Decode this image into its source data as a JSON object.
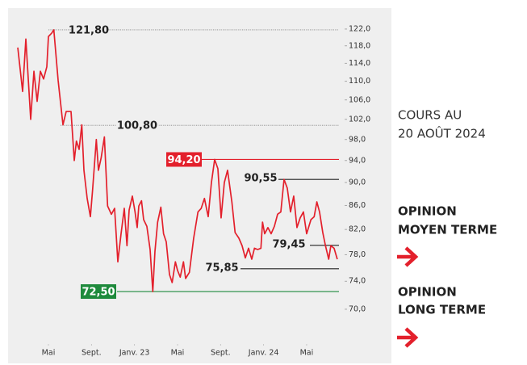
{
  "chart_data": {
    "type": "line",
    "yscale": "log",
    "xlim": [
      0,
      33
    ],
    "ylim": [
      66,
      126
    ],
    "yticks": [
      {
        "value": 122,
        "label": "122,0"
      },
      {
        "value": 118,
        "label": "118,0"
      },
      {
        "value": 114,
        "label": "114,0"
      },
      {
        "value": 110,
        "label": "110,0"
      },
      {
        "value": 106,
        "label": "106,0"
      },
      {
        "value": 102,
        "label": "102,0"
      },
      {
        "value": 98,
        "label": "98,0"
      },
      {
        "value": 94,
        "label": "94,0"
      },
      {
        "value": 90,
        "label": "90,0"
      },
      {
        "value": 86,
        "label": "86,0"
      },
      {
        "value": 82,
        "label": "82,0"
      },
      {
        "value": 78,
        "label": "78,0"
      },
      {
        "value": 74,
        "label": "74,0"
      },
      {
        "value": 70,
        "label": "70,0"
      }
    ],
    "xticks": [
      {
        "value": 4,
        "label": "Mai"
      },
      {
        "value": 8,
        "label": "Sept."
      },
      {
        "value": 12,
        "label": "Janv. 23"
      },
      {
        "value": 16,
        "label": "Mai"
      },
      {
        "value": 20,
        "label": "Sept."
      },
      {
        "value": 24,
        "label": "Janv. 24"
      },
      {
        "value": 28,
        "label": "Mai"
      }
    ],
    "x": [
      1.15,
      1.6,
      1.9,
      2.35,
      2.65,
      2.95,
      3.25,
      3.55,
      3.85,
      4.0,
      4.3,
      4.5,
      4.9,
      5.35,
      5.65,
      6.1,
      6.4,
      6.6,
      6.85,
      7.1,
      7.3,
      7.6,
      7.9,
      8.1,
      8.45,
      8.65,
      8.9,
      9.2,
      9.5,
      9.85,
      10.15,
      10.45,
      10.75,
      11.05,
      11.3,
      11.5,
      11.8,
      12.05,
      12.25,
      12.4,
      12.65,
      12.85,
      13.15,
      13.45,
      13.7,
      13.9,
      14.15,
      14.45,
      14.7,
      14.95,
      15.25,
      15.5,
      15.8,
      16.0,
      16.25,
      16.55,
      16.75,
      17.1,
      17.5,
      17.9,
      18.2,
      18.5,
      18.85,
      19.15,
      19.45,
      19.75,
      20.05,
      20.35,
      20.65,
      21.05,
      21.35,
      21.7,
      22.0,
      22.3,
      22.6,
      22.9,
      23.15,
      23.45,
      23.75,
      23.9,
      24.1,
      24.4,
      24.7,
      25.0,
      25.3,
      25.6,
      25.9,
      26.2,
      26.5,
      26.8,
      27.1,
      27.4,
      27.7,
      28.0,
      28.4,
      28.7,
      28.95,
      29.2,
      29.5,
      29.75,
      30.05,
      30.25,
      30.55,
      30.85
    ],
    "series": [
      {
        "color": "#e3202c",
        "values": [
          117.6,
          107.8,
          119.6,
          102,
          112.2,
          105.7,
          112.2,
          110.5,
          113.2,
          120.2,
          121.0,
          121.8,
          110.2,
          100.9,
          103.6,
          103.6,
          94,
          97.7,
          96.1,
          100.9,
          92.2,
          87.2,
          84.1,
          88.6,
          98,
          92.2,
          94.5,
          98.5,
          85.9,
          84.5,
          85.5,
          76.9,
          81.3,
          85.5,
          79.4,
          85.2,
          87.6,
          84.9,
          82.3,
          85.9,
          86.8,
          83.6,
          82.5,
          78.8,
          72.5,
          78.5,
          83.2,
          85.7,
          81.3,
          80.0,
          75.0,
          73.8,
          76.9,
          75.6,
          74.6,
          76.9,
          74.4,
          75.3,
          80.6,
          84.9,
          85.5,
          87.2,
          84.1,
          90,
          94.2,
          92.5,
          83.9,
          90,
          92.2,
          86.6,
          81.5,
          80.6,
          79.4,
          77.5,
          79.0,
          77.3,
          79.0,
          78.8,
          79.0,
          83.2,
          81.3,
          82.3,
          81.3,
          82.5,
          84.5,
          84.9,
          90.55,
          89.0,
          84.9,
          87.6,
          82.3,
          83.9,
          84.9,
          81.3,
          83.6,
          84.1,
          86.6,
          84.9,
          81.5,
          79.4,
          77.3,
          79.4,
          79.0,
          77.3
        ]
      }
    ],
    "levels": [
      {
        "label": "121,80",
        "value": 121.8,
        "color": "#888888",
        "style": "dotted"
      },
      {
        "label": "100,80",
        "value": 100.8,
        "color": "#888888",
        "style": "dotted"
      },
      {
        "label": "94,20",
        "value": 94.2,
        "color": "#e3202c",
        "style": "box"
      },
      {
        "label": "90,55",
        "value": 90.55,
        "color": "#222222",
        "style": "solid"
      },
      {
        "label": "79,45",
        "value": 79.45,
        "color": "#222222",
        "style": "solid"
      },
      {
        "label": "75,85",
        "value": 75.85,
        "color": "#222222",
        "style": "solid"
      },
      {
        "label": "72,50",
        "value": 72.5,
        "color": "#1e8a3c",
        "style": "box"
      }
    ]
  },
  "side": {
    "date_title": [
      "COURS AU",
      "20 AOÛT 2024"
    ],
    "opinion_medium": [
      "OPINION",
      "MOYEN TERME"
    ],
    "opinion_long": [
      "OPINION",
      "LONG TERME"
    ]
  }
}
